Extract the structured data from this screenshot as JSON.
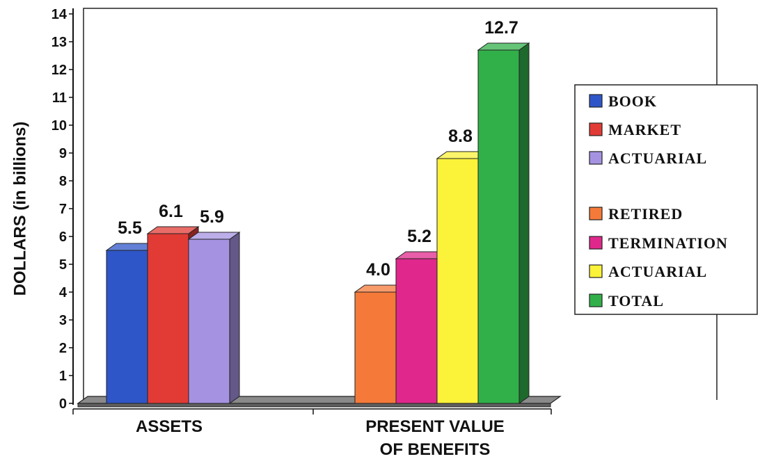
{
  "chart_data": {
    "type": "bar",
    "ylabel": "DOLLARS (in billions)",
    "ylim": [
      0,
      14
    ],
    "yticks": [
      "0",
      "1",
      "2",
      "3",
      "4",
      "5",
      "6",
      "7",
      "8",
      "9",
      "10",
      "11",
      "12",
      "13",
      "14"
    ],
    "categories": [
      {
        "label_lines": [
          "ASSETS"
        ]
      },
      {
        "label_lines": [
          "PRESENT VALUE",
          "OF BENEFITS"
        ]
      }
    ],
    "groups": [
      {
        "category": "ASSETS",
        "bars": [
          {
            "series": "BOOK",
            "value": 5.5,
            "label": "5.5",
            "color": "#2f56c8"
          },
          {
            "series": "MARKET",
            "value": 6.1,
            "label": "6.1",
            "color": "#e23b36"
          },
          {
            "series": "ACTUARIAL",
            "value": 5.9,
            "label": "5.9",
            "color": "#a593e2"
          }
        ]
      },
      {
        "category": "PRESENT VALUE OF BENEFITS",
        "bars": [
          {
            "series": "RETIRED",
            "value": 4.0,
            "label": "4.0",
            "color": "#f57a3a"
          },
          {
            "series": "TERMINATION",
            "value": 5.2,
            "label": "5.2",
            "color": "#e0288c"
          },
          {
            "series": "ACTUARIAL",
            "value": 8.8,
            "label": "8.8",
            "color": "#fbf23a"
          },
          {
            "series": "TOTAL",
            "value": 12.7,
            "label": "12.7",
            "color": "#31b04a"
          }
        ]
      }
    ],
    "legend": {
      "placement": "right",
      "items": [
        {
          "name": "BOOK",
          "color": "#2f56c8"
        },
        {
          "name": "MARKET",
          "color": "#e23b36"
        },
        {
          "name": "ACTUARIAL",
          "color": "#a593e2"
        },
        {
          "name": "RETIRED",
          "color": "#f57a3a"
        },
        {
          "name": "TERMINATION",
          "color": "#e0288c"
        },
        {
          "name": "ACTUARIAL",
          "color": "#fbf23a"
        },
        {
          "name": "TOTAL",
          "color": "#31b04a"
        }
      ]
    },
    "grid": false,
    "style": "3d"
  }
}
